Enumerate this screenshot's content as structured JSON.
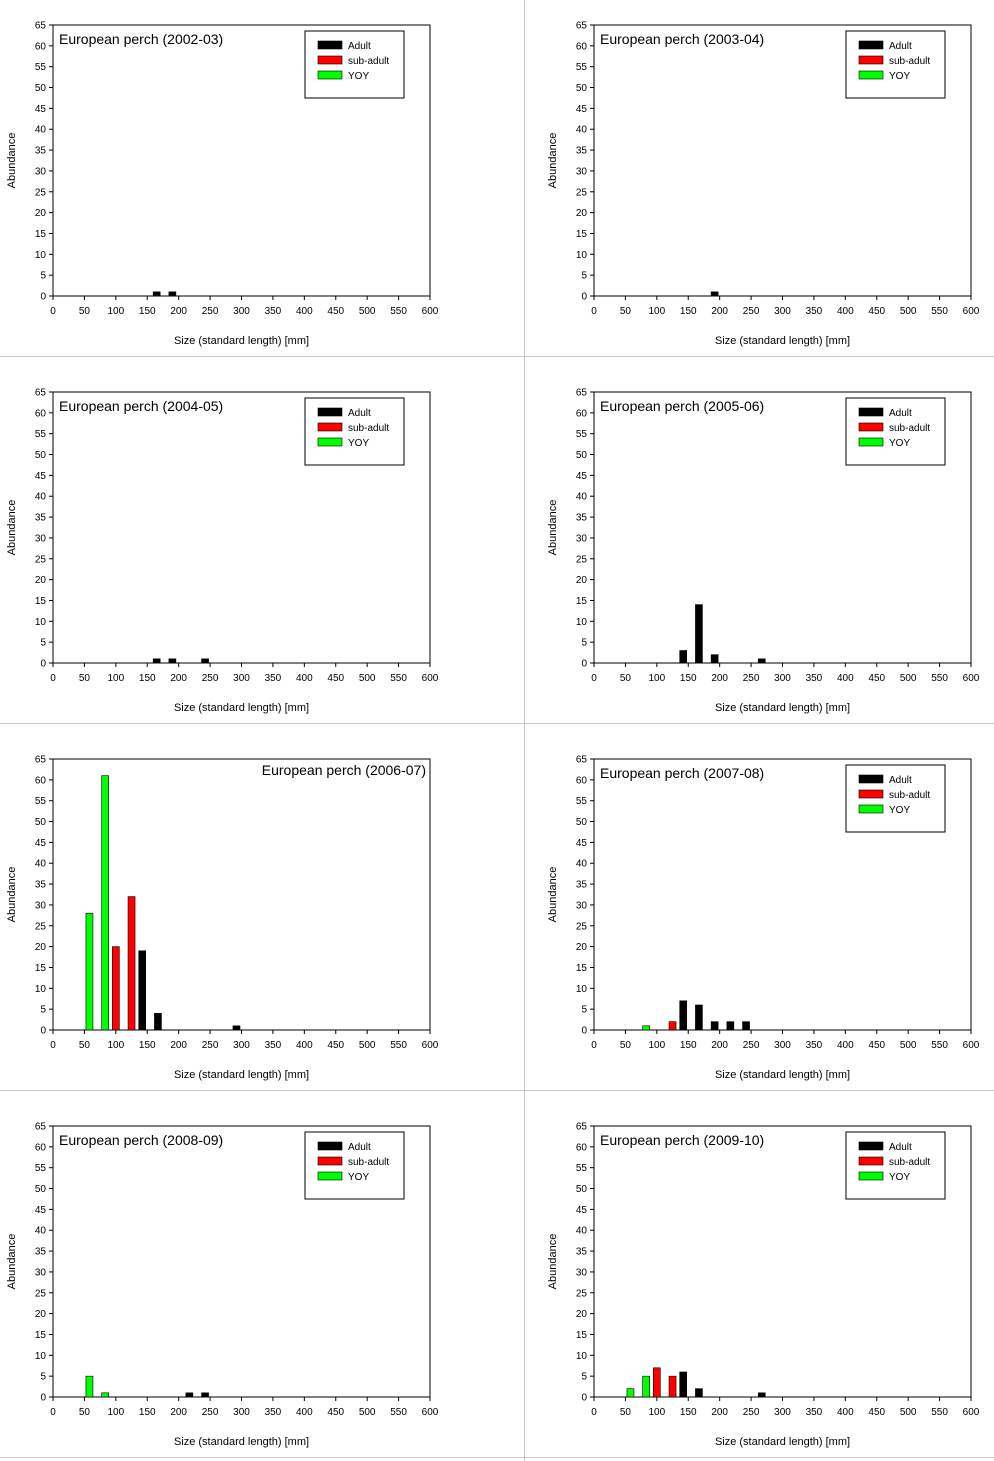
{
  "common": {
    "ylabel": "Abundance",
    "xlabel": "Size (standard length) [mm]",
    "legend_labels": [
      "Adult",
      "sub-adult",
      "YOY"
    ],
    "colors": {
      "Adult": "#000000",
      "sub-adult": "#ff0000",
      "YOY": "#00ff00"
    },
    "x_ticks": [
      "0",
      "50",
      "100",
      "150",
      "200",
      "250",
      "300",
      "350",
      "400",
      "450",
      "500",
      "550",
      "600"
    ],
    "y_ticks": [
      "0",
      "5",
      "10",
      "15",
      "20",
      "25",
      "30",
      "35",
      "40",
      "45",
      "50",
      "55",
      "60",
      "65"
    ]
  },
  "chart_data": [
    {
      "type": "bar",
      "title": "European perch (2002-03)",
      "xlabel": "Size (standard length) [mm]",
      "ylabel": "Abundance",
      "xlim": [
        0,
        600
      ],
      "ylim": [
        0,
        65
      ],
      "legend": "top-right",
      "series": [
        {
          "name": "Adult",
          "points": [
            {
              "x": 165,
              "y": 1
            },
            {
              "x": 190,
              "y": 1
            }
          ]
        },
        {
          "name": "sub-adult",
          "points": []
        },
        {
          "name": "YOY",
          "points": []
        }
      ]
    },
    {
      "type": "bar",
      "title": "European perch (2003-04)",
      "xlabel": "Size (standard length) [mm]",
      "ylabel": "Abundance",
      "xlim": [
        0,
        600
      ],
      "ylim": [
        0,
        65
      ],
      "legend": "top-right",
      "series": [
        {
          "name": "Adult",
          "points": [
            {
              "x": 192,
              "y": 1
            }
          ]
        },
        {
          "name": "sub-adult",
          "points": []
        },
        {
          "name": "YOY",
          "points": []
        }
      ]
    },
    {
      "type": "bar",
      "title": "European perch (2004-05)",
      "xlabel": "Size (standard length) [mm]",
      "ylabel": "Abundance",
      "xlim": [
        0,
        600
      ],
      "ylim": [
        0,
        65
      ],
      "legend": "top-right",
      "series": [
        {
          "name": "Adult",
          "points": [
            {
              "x": 165,
              "y": 1
            },
            {
              "x": 190,
              "y": 1
            },
            {
              "x": 242,
              "y": 1
            }
          ]
        },
        {
          "name": "sub-adult",
          "points": []
        },
        {
          "name": "YOY",
          "points": []
        }
      ]
    },
    {
      "type": "bar",
      "title": "European perch (2005-06)",
      "xlabel": "Size (standard length) [mm]",
      "ylabel": "Abundance",
      "xlim": [
        0,
        600
      ],
      "ylim": [
        0,
        65
      ],
      "legend": "top-right",
      "series": [
        {
          "name": "Adult",
          "points": [
            {
              "x": 142,
              "y": 3
            },
            {
              "x": 167,
              "y": 14
            },
            {
              "x": 192,
              "y": 2
            },
            {
              "x": 267,
              "y": 1
            }
          ]
        },
        {
          "name": "sub-adult",
          "points": []
        },
        {
          "name": "YOY",
          "points": []
        }
      ]
    },
    {
      "type": "bar",
      "title": "European perch (2006-07)",
      "xlabel": "Size (standard length) [mm]",
      "ylabel": "Abundance",
      "xlim": [
        0,
        600
      ],
      "ylim": [
        0,
        65
      ],
      "legend": "none",
      "series": [
        {
          "name": "YOY",
          "points": [
            {
              "x": 58,
              "y": 28
            },
            {
              "x": 83,
              "y": 61
            }
          ]
        },
        {
          "name": "sub-adult",
          "points": [
            {
              "x": 100,
              "y": 20
            },
            {
              "x": 125,
              "y": 32
            }
          ]
        },
        {
          "name": "Adult",
          "points": [
            {
              "x": 142,
              "y": 19
            },
            {
              "x": 167,
              "y": 4
            },
            {
              "x": 292,
              "y": 1
            }
          ]
        }
      ]
    },
    {
      "type": "bar",
      "title": "European perch (2007-08)",
      "xlabel": "Size (standard length) [mm]",
      "ylabel": "Abundance",
      "xlim": [
        0,
        600
      ],
      "ylim": [
        0,
        65
      ],
      "legend": "top-right",
      "series": [
        {
          "name": "YOY",
          "points": [
            {
              "x": 83,
              "y": 1
            }
          ]
        },
        {
          "name": "sub-adult",
          "points": [
            {
              "x": 125,
              "y": 2
            }
          ]
        },
        {
          "name": "Adult",
          "points": [
            {
              "x": 142,
              "y": 7
            },
            {
              "x": 167,
              "y": 6
            },
            {
              "x": 192,
              "y": 2
            },
            {
              "x": 217,
              "y": 2
            },
            {
              "x": 242,
              "y": 2
            }
          ]
        }
      ]
    },
    {
      "type": "bar",
      "title": "European perch (2008-09)",
      "xlabel": "Size (standard length) [mm]",
      "ylabel": "Abundance",
      "xlim": [
        0,
        600
      ],
      "ylim": [
        0,
        65
      ],
      "legend": "top-right",
      "series": [
        {
          "name": "YOY",
          "points": [
            {
              "x": 58,
              "y": 5
            },
            {
              "x": 83,
              "y": 1
            }
          ]
        },
        {
          "name": "sub-adult",
          "points": []
        },
        {
          "name": "Adult",
          "points": [
            {
              "x": 217,
              "y": 1
            },
            {
              "x": 242,
              "y": 1
            }
          ]
        }
      ]
    },
    {
      "type": "bar",
      "title": "European perch (2009-10)",
      "xlabel": "Size (standard length) [mm]",
      "ylabel": "Abundance",
      "xlim": [
        0,
        600
      ],
      "ylim": [
        0,
        65
      ],
      "legend": "top-right",
      "series": [
        {
          "name": "YOY",
          "points": [
            {
              "x": 58,
              "y": 2
            },
            {
              "x": 83,
              "y": 5
            }
          ]
        },
        {
          "name": "sub-adult",
          "points": [
            {
              "x": 100,
              "y": 7
            },
            {
              "x": 125,
              "y": 5
            }
          ]
        },
        {
          "name": "Adult",
          "points": [
            {
              "x": 142,
              "y": 6
            },
            {
              "x": 167,
              "y": 2
            },
            {
              "x": 267,
              "y": 1
            }
          ]
        }
      ]
    }
  ]
}
